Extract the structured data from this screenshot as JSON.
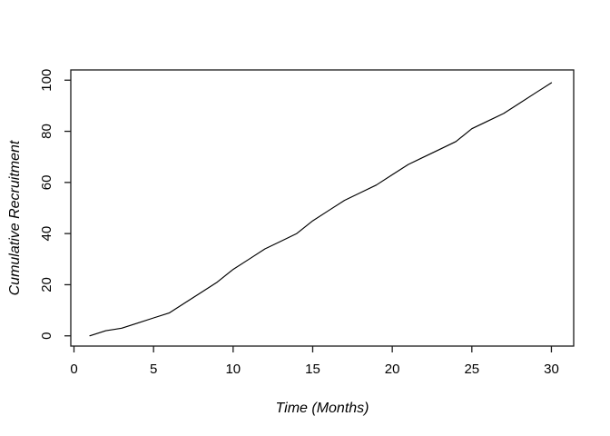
{
  "figure": {
    "background_color": "#ffffff",
    "line_color": "#000000",
    "axis_color": "#1a1a1a",
    "text_color": "#000000"
  },
  "chart_data": {
    "type": "line",
    "title": "",
    "xlabel": "Time (Months)",
    "ylabel": "Cumulative Recruitment",
    "x": [
      1,
      2,
      3,
      4,
      5,
      6,
      7,
      8,
      9,
      10,
      11,
      12,
      13,
      14,
      15,
      16,
      17,
      18,
      19,
      20,
      21,
      22,
      23,
      24,
      25,
      26,
      27,
      28,
      29,
      30
    ],
    "y": [
      0,
      2,
      3,
      5,
      7,
      9,
      13,
      17,
      21,
      26,
      30,
      34,
      37,
      40,
      45,
      49,
      53,
      56,
      59,
      63,
      67,
      70,
      73,
      76,
      81,
      84,
      87,
      91,
      95,
      99
    ],
    "x_ticks": [
      0,
      5,
      10,
      15,
      20,
      25,
      30
    ],
    "y_ticks": [
      0,
      20,
      40,
      60,
      80,
      100
    ],
    "xlim": [
      -0.2,
      31.4
    ],
    "ylim": [
      -4,
      104
    ],
    "grid": false,
    "legend": null,
    "marker": "none"
  }
}
